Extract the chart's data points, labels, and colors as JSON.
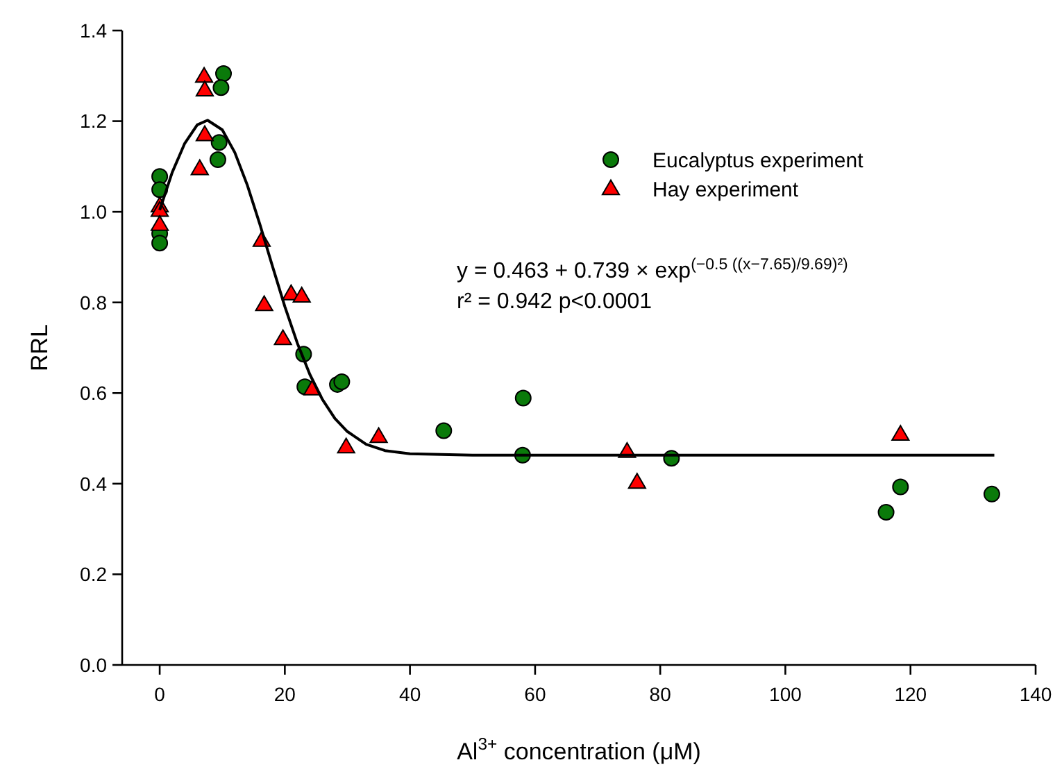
{
  "chart_data": {
    "type": "scatter",
    "xlabel": "Al$^{3+}$ concentration (μM)",
    "ylabel": "RRL",
    "xlim": [
      -6,
      140
    ],
    "xticks": [
      0,
      20,
      40,
      60,
      80,
      100,
      120,
      140
    ],
    "ylim": [
      0,
      1.4
    ],
    "yticks": [
      {
        "value": 0,
        "label": "0.0"
      },
      0.2,
      0.4,
      0.6,
      0.8,
      {
        "value": 1,
        "label": "1.0"
      },
      1.2,
      1.4
    ],
    "legend": "top right",
    "grid": false,
    "series": [
      {
        "name": "Eucalyptus experiment",
        "marker": "circle",
        "color": "#0a7a0a",
        "x": [
          0,
          0,
          0,
          0,
          10.2,
          9.8,
          9.5,
          9.3,
          23.0,
          23.2,
          28.4,
          29.1,
          45.4,
          58.1,
          58.0,
          81.8,
          118.4,
          116.1,
          133.0
        ],
        "values": [
          1.078,
          1.049,
          0.952,
          0.931,
          1.305,
          1.274,
          1.153,
          1.115,
          0.686,
          0.614,
          0.619,
          0.625,
          0.517,
          0.589,
          0.463,
          0.456,
          0.393,
          0.337,
          0.377
        ]
      },
      {
        "name": "Hay experiment",
        "marker": "triangle",
        "color": "#ff0000",
        "x": [
          0,
          0,
          0,
          7.1,
          7.2,
          7.2,
          6.4,
          16.3,
          16.7,
          21.0,
          22.7,
          19.7,
          24.4,
          29.8,
          35.0,
          74.7,
          76.3,
          118.4
        ],
        "values": [
          1.013,
          1.003,
          0.972,
          1.299,
          1.269,
          1.17,
          1.095,
          0.937,
          0.795,
          0.819,
          0.814,
          0.72,
          0.609,
          0.481,
          0.504,
          0.471,
          0.403,
          0.509
        ]
      },
      {
        "type": "line",
        "color": "#000000",
        "line_style": "solid",
        "marker": "none",
        "x": [
          0,
          2,
          4,
          6,
          7.65,
          10,
          12,
          14,
          16,
          18,
          20,
          22,
          24,
          26,
          28,
          30,
          33,
          36,
          40,
          50,
          133.4
        ],
        "values": [
          1.004,
          1.087,
          1.151,
          1.192,
          1.202,
          1.181,
          1.131,
          1.059,
          0.973,
          0.881,
          0.791,
          0.71,
          0.641,
          0.586,
          0.544,
          0.515,
          0.487,
          0.473,
          0.466,
          0.463,
          0.463
        ]
      }
    ],
    "annotations": [
      "y = 0.463 + 0.739 × exp$^{(−0.5 ((x−7.65)/9.69)²)}$",
      "r² = 0.942 p<0.0001"
    ]
  }
}
